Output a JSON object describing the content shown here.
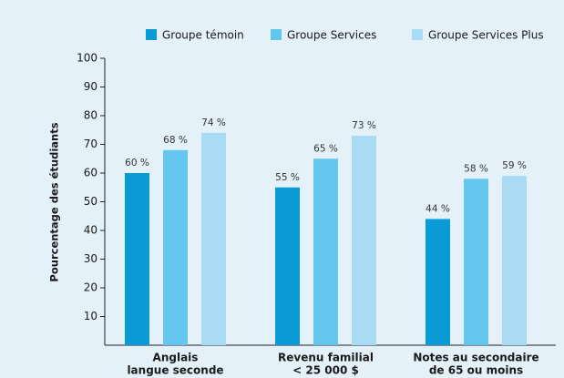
{
  "chart_data": {
    "type": "bar",
    "categories": [
      [
        "Anglais",
        "langue seconde"
      ],
      [
        "Revenu familial",
        "< 25 000 $"
      ],
      [
        "Notes au secondaire",
        "de 65 ou moins"
      ]
    ],
    "series": [
      {
        "name": "Groupe témoin",
        "color": "#0a9bd6",
        "values": [
          60,
          55,
          44
        ],
        "value_labels": [
          "60 %",
          "55 %",
          "44 %"
        ]
      },
      {
        "name": "Groupe Services",
        "color": "#62c6ee",
        "values": [
          68,
          65,
          58
        ],
        "value_labels": [
          "68 %",
          "65 %",
          "58 %"
        ]
      },
      {
        "name": "Groupe Services Plus",
        "color": "#a9dcf4",
        "values": [
          74,
          73,
          59
        ],
        "value_labels": [
          "74 %",
          "73 %",
          "59 %"
        ]
      }
    ],
    "ylabel": "Pourcentage des étudiants",
    "ylim": [
      0,
      100
    ],
    "yticks": [
      10,
      20,
      30,
      40,
      50,
      60,
      70,
      80,
      90,
      100
    ],
    "legend": "top"
  }
}
